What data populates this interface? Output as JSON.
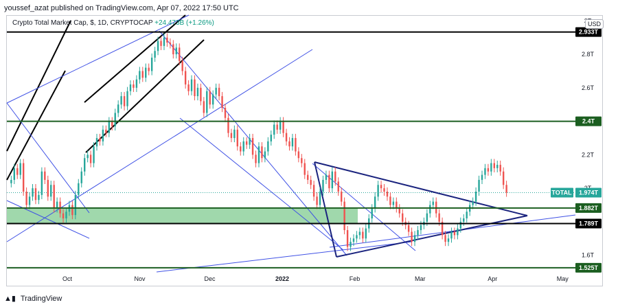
{
  "header": {
    "publisher": "youssef_azat published on TradingView.com, Apr 07, 2022 17:50 UTC"
  },
  "legend": {
    "symbol": "Crypto Total Market Cap, $, 1D, CRYPTOCAP",
    "change": "+24.473B (+1.26%)"
  },
  "currency_button": "USD",
  "footer": {
    "brand": "TradingView",
    "icon": "tradingview-logo-icon"
  },
  "colors": {
    "up": "#26a69a",
    "down": "#ef5350",
    "line_blue": "#3f51e5",
    "line_black": "#000000",
    "line_navy": "#1a237e",
    "zone_green": "#8fd19e",
    "level_green": "#1b5e20"
  },
  "chart_data": {
    "type": "candlestick",
    "x_ticks": [
      {
        "label": "Oct",
        "date": "2021-10-01",
        "bold": false
      },
      {
        "label": "Nov",
        "date": "2021-11-01",
        "bold": false
      },
      {
        "label": "Dec",
        "date": "2021-12-01",
        "bold": false
      },
      {
        "label": "2022",
        "date": "2022-01-01",
        "bold": true
      },
      {
        "label": "Feb",
        "date": "2022-02-01",
        "bold": false
      },
      {
        "label": "Mar",
        "date": "2022-03-01",
        "bold": false
      },
      {
        "label": "Apr",
        "date": "2022-04-01",
        "bold": false
      },
      {
        "label": "May",
        "date": "2022-05-01",
        "bold": false
      }
    ],
    "y_ticks": [
      {
        "label": "3T",
        "value": 3.0
      },
      {
        "label": "2.8T",
        "value": 2.8
      },
      {
        "label": "2.6T",
        "value": 2.6
      },
      {
        "label": "2.2T",
        "value": 2.2
      },
      {
        "label": "2T",
        "value": 2.0
      },
      {
        "label": "1.6T",
        "value": 1.6
      }
    ],
    "ylim_trillions": [
      1.5,
      3.03
    ],
    "price_labels": [
      {
        "label": "2.933T",
        "value": 2.933,
        "color": "#000000"
      },
      {
        "label": "2.4T",
        "value": 2.4,
        "color": "#1b5e20"
      },
      {
        "label": "1.974T",
        "value": 1.974,
        "color": "#26a69a",
        "tag": "TOTAL"
      },
      {
        "label": "1.882T",
        "value": 1.882,
        "color": "#1b5e20"
      },
      {
        "label": "1.789T",
        "value": 1.789,
        "color": "#000000"
      },
      {
        "label": "1.525T",
        "value": 1.525,
        "color": "#1b5e20"
      }
    ],
    "horizontal_levels_trillions": [
      2.933,
      2.4,
      1.882,
      1.789,
      1.525
    ],
    "support_zone_trillions": [
      1.789,
      1.882
    ],
    "closes_trillions": [
      2.05,
      2.12,
      2.08,
      2.15,
      1.98,
      1.9,
      1.95,
      2.0,
      1.93,
      1.96,
      2.1,
      2.05,
      1.95,
      2.02,
      1.88,
      1.92,
      1.85,
      1.82,
      1.86,
      1.9,
      1.84,
      1.96,
      2.03,
      2.1,
      2.18,
      2.2,
      2.15,
      2.25,
      2.3,
      2.28,
      2.35,
      2.33,
      2.4,
      2.37,
      2.45,
      2.5,
      2.55,
      2.49,
      2.58,
      2.62,
      2.6,
      2.65,
      2.7,
      2.66,
      2.72,
      2.7,
      2.78,
      2.82,
      2.88,
      2.85,
      2.9,
      2.87,
      2.86,
      2.8,
      2.84,
      2.76,
      2.7,
      2.62,
      2.58,
      2.65,
      2.55,
      2.6,
      2.52,
      2.45,
      2.58,
      2.5,
      2.56,
      2.6,
      2.55,
      2.48,
      2.42,
      2.33,
      2.3,
      2.35,
      2.25,
      2.22,
      2.28,
      2.26,
      2.3,
      2.2,
      2.15,
      2.25,
      2.18,
      2.22,
      2.28,
      2.32,
      2.38,
      2.35,
      2.4,
      2.33,
      2.28,
      2.25,
      2.3,
      2.22,
      2.18,
      2.15,
      2.08,
      2.05,
      2.02,
      1.95,
      1.9,
      1.98,
      2.05,
      2.08,
      2.0,
      2.1,
      2.04,
      1.98,
      1.92,
      1.75,
      1.65,
      1.68,
      1.7,
      1.72,
      1.74,
      1.7,
      1.76,
      1.82,
      1.88,
      1.95,
      2.02,
      2.0,
      1.98,
      1.95,
      1.9,
      1.92,
      1.88,
      1.85,
      1.8,
      1.78,
      1.74,
      1.68,
      1.72,
      1.75,
      1.78,
      1.8,
      1.85,
      1.9,
      1.92,
      1.85,
      1.8,
      1.72,
      1.68,
      1.7,
      1.74,
      1.72,
      1.76,
      1.8,
      1.82,
      1.86,
      1.9,
      1.92,
      1.98,
      2.05,
      2.08,
      2.12,
      2.1,
      2.15,
      2.12,
      2.14,
      2.1,
      2.02,
      1.974
    ]
  }
}
